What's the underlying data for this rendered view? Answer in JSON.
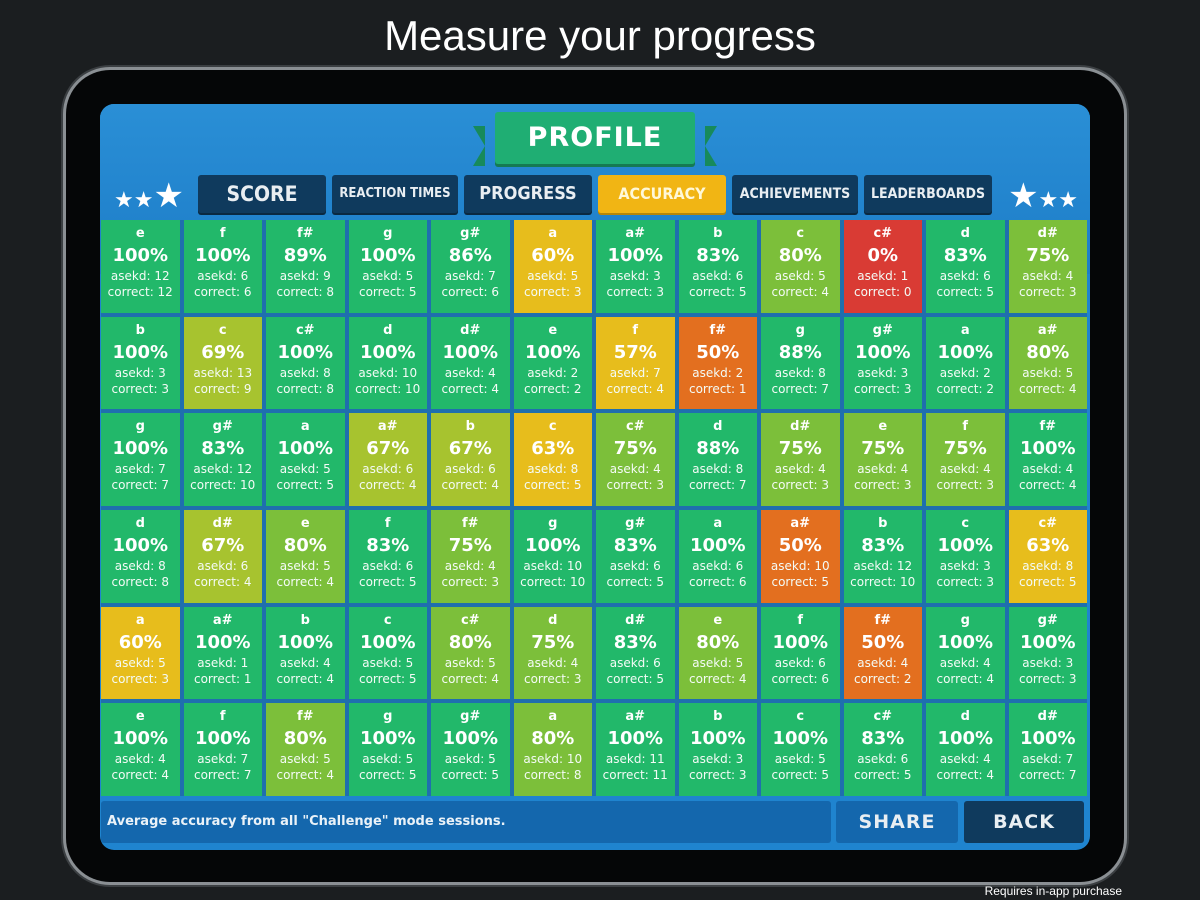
{
  "headline": "Measure your progress",
  "profile_title": "PROFILE",
  "tabs": [
    {
      "label": "SCORE"
    },
    {
      "label": "REACTION TIMES"
    },
    {
      "label": "PROGRESS"
    },
    {
      "label": "ACCURACY",
      "active": true
    },
    {
      "label": "ACHIEVEMENTS"
    },
    {
      "label": "LEADERBOARDS"
    }
  ],
  "footer": {
    "info": "Average accuracy from all \"Challenge\" mode sessions.",
    "share_label": "SHARE",
    "back_label": "BACK"
  },
  "disclaimer": "Requires in-app purchase",
  "colors": {
    "green": "#22b86a",
    "lime": "#7cbf3a",
    "yellowgreen": "#a7c32f",
    "yellow": "#e7bd1c",
    "orange": "#e36f1f",
    "red": "#d93b34",
    "active_tab": "#f1b514"
  },
  "grid": [
    [
      {
        "note": "e",
        "pct": "100%",
        "asked": "asekd: 12",
        "correct": "correct: 12",
        "color": "green"
      },
      {
        "note": "f",
        "pct": "100%",
        "asked": "asekd: 6",
        "correct": "correct: 6",
        "color": "green"
      },
      {
        "note": "f#",
        "pct": "89%",
        "asked": "asekd: 9",
        "correct": "correct: 8",
        "color": "green"
      },
      {
        "note": "g",
        "pct": "100%",
        "asked": "asekd: 5",
        "correct": "correct: 5",
        "color": "green"
      },
      {
        "note": "g#",
        "pct": "86%",
        "asked": "asekd: 7",
        "correct": "correct: 6",
        "color": "green"
      },
      {
        "note": "a",
        "pct": "60%",
        "asked": "asekd: 5",
        "correct": "correct: 3",
        "color": "yellow"
      },
      {
        "note": "a#",
        "pct": "100%",
        "asked": "asekd: 3",
        "correct": "correct: 3",
        "color": "green"
      },
      {
        "note": "b",
        "pct": "83%",
        "asked": "asekd: 6",
        "correct": "correct: 5",
        "color": "green"
      },
      {
        "note": "c",
        "pct": "80%",
        "asked": "asekd: 5",
        "correct": "correct: 4",
        "color": "lime"
      },
      {
        "note": "c#",
        "pct": "0%",
        "asked": "asekd: 1",
        "correct": "correct: 0",
        "color": "red"
      },
      {
        "note": "d",
        "pct": "83%",
        "asked": "asekd: 6",
        "correct": "correct: 5",
        "color": "green"
      },
      {
        "note": "d#",
        "pct": "75%",
        "asked": "asekd: 4",
        "correct": "correct: 3",
        "color": "lime"
      }
    ],
    [
      {
        "note": "b",
        "pct": "100%",
        "asked": "asekd: 3",
        "correct": "correct: 3",
        "color": "green"
      },
      {
        "note": "c",
        "pct": "69%",
        "asked": "asekd: 13",
        "correct": "correct: 9",
        "color": "yellowgreen"
      },
      {
        "note": "c#",
        "pct": "100%",
        "asked": "asekd: 8",
        "correct": "correct: 8",
        "color": "green"
      },
      {
        "note": "d",
        "pct": "100%",
        "asked": "asekd: 10",
        "correct": "correct: 10",
        "color": "green"
      },
      {
        "note": "d#",
        "pct": "100%",
        "asked": "asekd: 4",
        "correct": "correct: 4",
        "color": "green"
      },
      {
        "note": "e",
        "pct": "100%",
        "asked": "asekd: 2",
        "correct": "correct: 2",
        "color": "green"
      },
      {
        "note": "f",
        "pct": "57%",
        "asked": "asekd: 7",
        "correct": "correct: 4",
        "color": "yellow"
      },
      {
        "note": "f#",
        "pct": "50%",
        "asked": "asekd: 2",
        "correct": "correct: 1",
        "color": "orange"
      },
      {
        "note": "g",
        "pct": "88%",
        "asked": "asekd: 8",
        "correct": "correct: 7",
        "color": "green"
      },
      {
        "note": "g#",
        "pct": "100%",
        "asked": "asekd: 3",
        "correct": "correct: 3",
        "color": "green"
      },
      {
        "note": "a",
        "pct": "100%",
        "asked": "asekd: 2",
        "correct": "correct: 2",
        "color": "green"
      },
      {
        "note": "a#",
        "pct": "80%",
        "asked": "asekd: 5",
        "correct": "correct: 4",
        "color": "lime"
      }
    ],
    [
      {
        "note": "g",
        "pct": "100%",
        "asked": "asekd: 7",
        "correct": "correct: 7",
        "color": "green"
      },
      {
        "note": "g#",
        "pct": "83%",
        "asked": "asekd: 12",
        "correct": "correct: 10",
        "color": "green"
      },
      {
        "note": "a",
        "pct": "100%",
        "asked": "asekd: 5",
        "correct": "correct: 5",
        "color": "green"
      },
      {
        "note": "a#",
        "pct": "67%",
        "asked": "asekd: 6",
        "correct": "correct: 4",
        "color": "yellowgreen"
      },
      {
        "note": "b",
        "pct": "67%",
        "asked": "asekd: 6",
        "correct": "correct: 4",
        "color": "yellowgreen"
      },
      {
        "note": "c",
        "pct": "63%",
        "asked": "asekd: 8",
        "correct": "correct: 5",
        "color": "yellow"
      },
      {
        "note": "c#",
        "pct": "75%",
        "asked": "asekd: 4",
        "correct": "correct: 3",
        "color": "lime"
      },
      {
        "note": "d",
        "pct": "88%",
        "asked": "asekd: 8",
        "correct": "correct: 7",
        "color": "green"
      },
      {
        "note": "d#",
        "pct": "75%",
        "asked": "asekd: 4",
        "correct": "correct: 3",
        "color": "lime"
      },
      {
        "note": "e",
        "pct": "75%",
        "asked": "asekd: 4",
        "correct": "correct: 3",
        "color": "lime"
      },
      {
        "note": "f",
        "pct": "75%",
        "asked": "asekd: 4",
        "correct": "correct: 3",
        "color": "lime"
      },
      {
        "note": "f#",
        "pct": "100%",
        "asked": "asekd: 4",
        "correct": "correct: 4",
        "color": "green"
      }
    ],
    [
      {
        "note": "d",
        "pct": "100%",
        "asked": "asekd: 8",
        "correct": "correct: 8",
        "color": "green"
      },
      {
        "note": "d#",
        "pct": "67%",
        "asked": "asekd: 6",
        "correct": "correct: 4",
        "color": "yellowgreen"
      },
      {
        "note": "e",
        "pct": "80%",
        "asked": "asekd: 5",
        "correct": "correct: 4",
        "color": "lime"
      },
      {
        "note": "f",
        "pct": "83%",
        "asked": "asekd: 6",
        "correct": "correct: 5",
        "color": "green"
      },
      {
        "note": "f#",
        "pct": "75%",
        "asked": "asekd: 4",
        "correct": "correct: 3",
        "color": "lime"
      },
      {
        "note": "g",
        "pct": "100%",
        "asked": "asekd: 10",
        "correct": "correct: 10",
        "color": "green"
      },
      {
        "note": "g#",
        "pct": "83%",
        "asked": "asekd: 6",
        "correct": "correct: 5",
        "color": "green"
      },
      {
        "note": "a",
        "pct": "100%",
        "asked": "asekd: 6",
        "correct": "correct: 6",
        "color": "green"
      },
      {
        "note": "a#",
        "pct": "50%",
        "asked": "asekd: 10",
        "correct": "correct: 5",
        "color": "orange"
      },
      {
        "note": "b",
        "pct": "83%",
        "asked": "asekd: 12",
        "correct": "correct: 10",
        "color": "green"
      },
      {
        "note": "c",
        "pct": "100%",
        "asked": "asekd: 3",
        "correct": "correct: 3",
        "color": "green"
      },
      {
        "note": "c#",
        "pct": "63%",
        "asked": "asekd: 8",
        "correct": "correct: 5",
        "color": "yellow"
      }
    ],
    [
      {
        "note": "a",
        "pct": "60%",
        "asked": "asekd: 5",
        "correct": "correct: 3",
        "color": "yellow"
      },
      {
        "note": "a#",
        "pct": "100%",
        "asked": "asekd: 1",
        "correct": "correct: 1",
        "color": "green"
      },
      {
        "note": "b",
        "pct": "100%",
        "asked": "asekd: 4",
        "correct": "correct: 4",
        "color": "green"
      },
      {
        "note": "c",
        "pct": "100%",
        "asked": "asekd: 5",
        "correct": "correct: 5",
        "color": "green"
      },
      {
        "note": "c#",
        "pct": "80%",
        "asked": "asekd: 5",
        "correct": "correct: 4",
        "color": "lime"
      },
      {
        "note": "d",
        "pct": "75%",
        "asked": "asekd: 4",
        "correct": "correct: 3",
        "color": "lime"
      },
      {
        "note": "d#",
        "pct": "83%",
        "asked": "asekd: 6",
        "correct": "correct: 5",
        "color": "green"
      },
      {
        "note": "e",
        "pct": "80%",
        "asked": "asekd: 5",
        "correct": "correct: 4",
        "color": "lime"
      },
      {
        "note": "f",
        "pct": "100%",
        "asked": "asekd: 6",
        "correct": "correct: 6",
        "color": "green"
      },
      {
        "note": "f#",
        "pct": "50%",
        "asked": "asekd: 4",
        "correct": "correct: 2",
        "color": "orange"
      },
      {
        "note": "g",
        "pct": "100%",
        "asked": "asekd: 4",
        "correct": "correct: 4",
        "color": "green"
      },
      {
        "note": "g#",
        "pct": "100%",
        "asked": "asekd: 3",
        "correct": "correct: 3",
        "color": "green"
      }
    ],
    [
      {
        "note": "e",
        "pct": "100%",
        "asked": "asekd: 4",
        "correct": "correct: 4",
        "color": "green"
      },
      {
        "note": "f",
        "pct": "100%",
        "asked": "asekd: 7",
        "correct": "correct: 7",
        "color": "green"
      },
      {
        "note": "f#",
        "pct": "80%",
        "asked": "asekd: 5",
        "correct": "correct: 4",
        "color": "lime"
      },
      {
        "note": "g",
        "pct": "100%",
        "asked": "asekd: 5",
        "correct": "correct: 5",
        "color": "green"
      },
      {
        "note": "g#",
        "pct": "100%",
        "asked": "asekd: 5",
        "correct": "correct: 5",
        "color": "green"
      },
      {
        "note": "a",
        "pct": "80%",
        "asked": "asekd: 10",
        "correct": "correct: 8",
        "color": "lime"
      },
      {
        "note": "a#",
        "pct": "100%",
        "asked": "asekd: 11",
        "correct": "correct: 11",
        "color": "green"
      },
      {
        "note": "b",
        "pct": "100%",
        "asked": "asekd: 3",
        "correct": "correct: 3",
        "color": "green"
      },
      {
        "note": "c",
        "pct": "100%",
        "asked": "asekd: 5",
        "correct": "correct: 5",
        "color": "green"
      },
      {
        "note": "c#",
        "pct": "83%",
        "asked": "asekd: 6",
        "correct": "correct: 5",
        "color": "green"
      },
      {
        "note": "d",
        "pct": "100%",
        "asked": "asekd: 4",
        "correct": "correct: 4",
        "color": "green"
      },
      {
        "note": "d#",
        "pct": "100%",
        "asked": "asekd: 7",
        "correct": "correct: 7",
        "color": "green"
      }
    ]
  ]
}
